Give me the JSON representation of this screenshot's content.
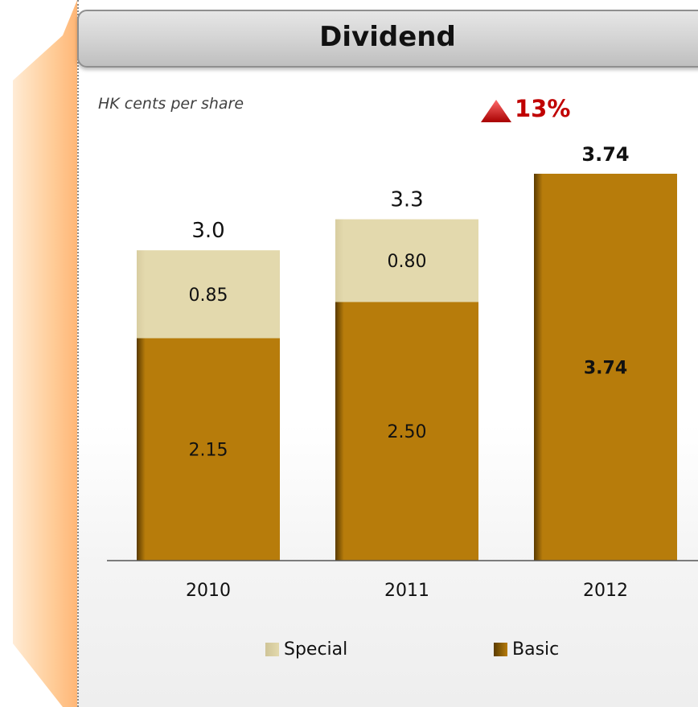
{
  "title": "Dividend",
  "unit_label": "HK cents per share",
  "growth": {
    "label": "13%",
    "direction": "up",
    "color": "#c00000"
  },
  "colors": {
    "basic": "#b77c0b",
    "special": "#e3d9ad"
  },
  "chart_data": {
    "type": "bar",
    "stacked": true,
    "categories": [
      "2010",
      "2011",
      "2012"
    ],
    "series": [
      {
        "name": "Basic",
        "values": [
          2.15,
          2.5,
          3.74
        ],
        "labels": [
          "2.15",
          "2.50",
          "3.74"
        ]
      },
      {
        "name": "Special",
        "values": [
          0.85,
          0.8,
          0
        ],
        "labels": [
          "0.85",
          "0.80",
          ""
        ]
      }
    ],
    "totals": [
      3.0,
      3.3,
      3.74
    ],
    "total_labels": [
      "3.0",
      "3.3",
      "3.74"
    ],
    "title": "Dividend",
    "ylabel": "HK cents per share",
    "ylim": [
      0,
      3.74
    ],
    "grid": false,
    "legend": [
      "Special",
      "Basic"
    ],
    "legend_position": "bottom"
  }
}
